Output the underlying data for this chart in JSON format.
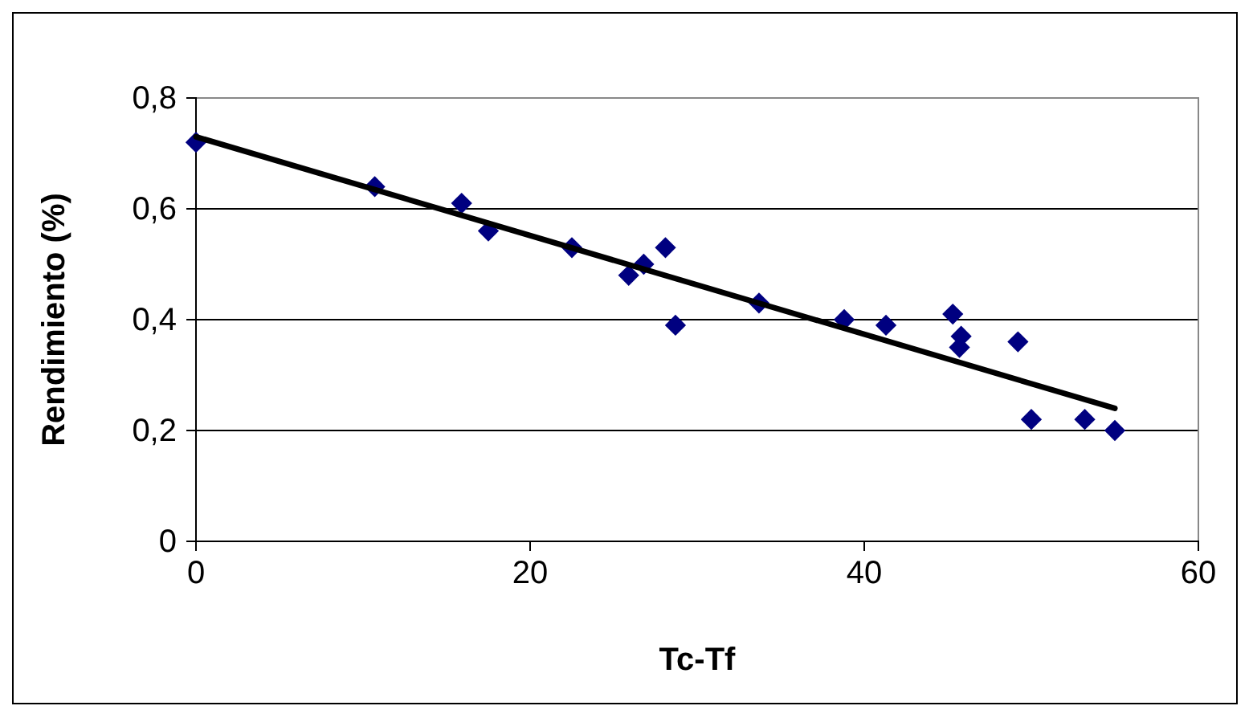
{
  "chart_data": {
    "type": "scatter",
    "xlabel": "Tc-Tf",
    "ylabel": "Rendimiento (%)",
    "xlim": [
      0,
      60
    ],
    "xticks": [
      0,
      20,
      40,
      60
    ],
    "ylim": [
      0,
      0.8
    ],
    "yticks": [
      0,
      {
        "value": 0.2,
        "label": "0,2"
      },
      {
        "value": 0.4,
        "label": "0,4"
      },
      {
        "value": 0.6,
        "label": "0,6"
      },
      {
        "value": 0.8,
        "label": "0,8"
      }
    ],
    "grid": "y",
    "series": [
      {
        "color": "#000080",
        "marker": "diamond",
        "x": [
          0,
          10.7,
          15.9,
          17.5,
          22.5,
          25.9,
          26.8,
          28.1,
          28.7,
          33.7,
          38.8,
          41.3,
          45.3,
          45.8,
          45.7,
          49.2,
          50.0,
          53.2,
          55.0
        ],
        "values": [
          0.72,
          0.64,
          0.61,
          0.56,
          0.53,
          0.48,
          0.5,
          0.53,
          0.39,
          0.43,
          0.4,
          0.39,
          0.41,
          0.37,
          0.35,
          0.36,
          0.22,
          0.22,
          0.2
        ]
      },
      {
        "type": "line",
        "color": "#000000",
        "marker": "none",
        "line_style": "solid",
        "x": [
          0,
          55
        ],
        "values": [
          0.73,
          0.24
        ]
      }
    ]
  }
}
